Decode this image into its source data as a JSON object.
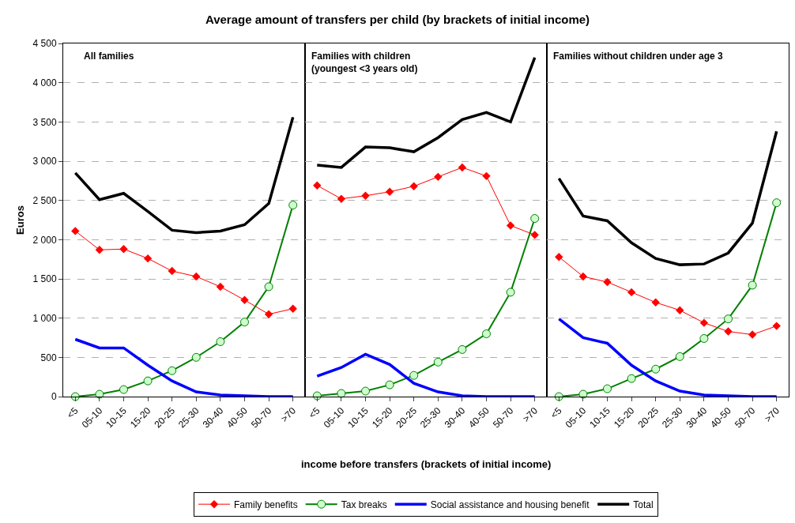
{
  "chart_data": [
    {
      "type": "line",
      "title": "Average amount of transfers per child (by brackets of initial income)",
      "ylabel": "Euros",
      "annotations": [
        "All families"
      ],
      "categories": [
        "<5",
        "05-10",
        "10-15",
        "15-20",
        "20-25",
        "25-30",
        "30-40",
        "40-50",
        "50-70",
        ">70"
      ],
      "series": [
        {
          "name": "Family benefits",
          "color": "#ff0000",
          "marker": "diamond",
          "values": [
            2110,
            1870,
            1880,
            1760,
            1600,
            1530,
            1400,
            1230,
            1050,
            1120
          ]
        },
        {
          "name": "Tax breaks",
          "color": "#008000",
          "marker": "circle",
          "values": [
            0,
            30,
            90,
            200,
            330,
            500,
            700,
            950,
            1400,
            2440
          ]
        },
        {
          "name": "Social assistance and housing benefit",
          "color": "#0000ff",
          "marker": "none",
          "values": [
            730,
            620,
            620,
            400,
            200,
            60,
            20,
            10,
            0,
            0
          ]
        },
        {
          "name": "Total",
          "color": "#000000",
          "marker": "none",
          "values": [
            2850,
            2510,
            2590,
            2360,
            2120,
            2090,
            2110,
            2190,
            2460,
            3560
          ]
        }
      ],
      "ylim": [
        0,
        4500
      ],
      "yticks": [
        0,
        {
          "value": 500,
          "label": "500"
        },
        {
          "value": 1000,
          "label": "1 000"
        },
        {
          "value": 1500,
          "label": "1 500"
        },
        {
          "value": 2000,
          "label": "2 000"
        },
        {
          "value": 2500,
          "label": "2 500"
        },
        {
          "value": 3000,
          "label": "3 000"
        },
        {
          "value": 3500,
          "label": "3 500"
        },
        {
          "value": 4000,
          "label": "4 000"
        },
        {
          "value": 4500,
          "label": "4 500"
        }
      ],
      "grid": "y",
      "legend": "bottom"
    },
    {
      "type": "line",
      "xlabel": "income before transfers (brackets of initial income)",
      "annotations": [
        "Families with children\n(youngest <3 years old)"
      ],
      "categories": [
        "<5",
        "05-10",
        "10-15",
        "15-20",
        "20-25",
        "25-30",
        "30-40",
        "40-50",
        "50-70",
        ">70"
      ],
      "series": [
        {
          "name": "Family benefits",
          "color": "#ff0000",
          "marker": "diamond",
          "values": [
            2690,
            2520,
            2560,
            2610,
            2680,
            2800,
            2920,
            2810,
            2180,
            2060
          ]
        },
        {
          "name": "Tax breaks",
          "color": "#008000",
          "marker": "circle",
          "values": [
            10,
            40,
            70,
            150,
            270,
            440,
            600,
            800,
            1330,
            2270
          ]
        },
        {
          "name": "Social assistance and housing benefit",
          "color": "#0000ff",
          "marker": "none",
          "values": [
            260,
            370,
            540,
            410,
            170,
            60,
            10,
            0,
            0,
            0
          ]
        },
        {
          "name": "Total",
          "color": "#000000",
          "marker": "none",
          "values": [
            2950,
            2920,
            3180,
            3170,
            3120,
            3300,
            3530,
            3620,
            3500,
            4320
          ]
        }
      ],
      "ylim": [
        0,
        4500
      ],
      "grid": "y",
      "legend": "bottom",
      "tick_labels": "x"
    },
    {
      "type": "line",
      "annotations": [
        "Families without children under age 3"
      ],
      "categories": [
        "<5",
        "05-10",
        "10-15",
        "15-20",
        "20-25",
        "25-30",
        "30-40",
        "40-50",
        "50-70",
        ">70"
      ],
      "series": [
        {
          "name": "Family benefits",
          "color": "#ff0000",
          "marker": "diamond",
          "values": [
            1780,
            1530,
            1460,
            1330,
            1200,
            1100,
            940,
            830,
            790,
            900
          ]
        },
        {
          "name": "Tax breaks",
          "color": "#008000",
          "marker": "circle",
          "values": [
            0,
            30,
            100,
            230,
            350,
            510,
            740,
            990,
            1420,
            2470
          ]
        },
        {
          "name": "Social assistance and housing benefit",
          "color": "#0000ff",
          "marker": "none",
          "values": [
            990,
            750,
            680,
            400,
            200,
            70,
            20,
            10,
            0,
            0
          ]
        },
        {
          "name": "Total",
          "color": "#000000",
          "marker": "none",
          "values": [
            2780,
            2300,
            2240,
            1960,
            1760,
            1680,
            1690,
            1830,
            2210,
            3380
          ]
        }
      ],
      "ylim": [
        0,
        4500
      ],
      "grid": "y",
      "legend": "bottom",
      "tick_labels": "x"
    }
  ]
}
